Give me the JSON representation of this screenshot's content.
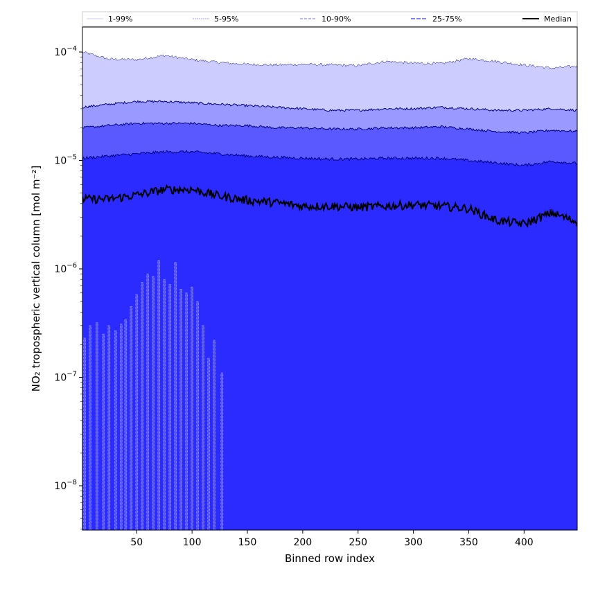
{
  "chart_data": {
    "type": "area",
    "title": "",
    "xlabel": "Binned row index",
    "ylabel": "NO₂ tropospheric vertical column [mol m⁻²]",
    "x_range": [
      1,
      448
    ],
    "y_range": [
      3.9e-09,
      0.00017
    ],
    "y_scale": "log",
    "x_ticks": [
      50,
      100,
      150,
      200,
      250,
      300,
      350,
      400
    ],
    "y_ticks": [
      {
        "value": 1e-08,
        "base": "10",
        "exp": "−8"
      },
      {
        "value": 1e-07,
        "base": "10",
        "exp": "−7"
      },
      {
        "value": 1e-06,
        "base": "10",
        "exp": "−6"
      },
      {
        "value": 1e-05,
        "base": "10",
        "exp": "−5"
      },
      {
        "value": 0.0001,
        "base": "10",
        "exp": "−4"
      }
    ],
    "grid": false,
    "legend_position": "top",
    "colors": {
      "band_1_99": "#ccccff",
      "band_5_95": "#9999ff",
      "band_10_90": "#5959ff",
      "band_25_75": "#2b2bff",
      "median": "#000000"
    },
    "legend": [
      {
        "label": "1-99%",
        "style": "band_1_99"
      },
      {
        "label": "5-95%",
        "style": "band_5_95"
      },
      {
        "label": "10-90%",
        "style": "band_10_90"
      },
      {
        "label": "25-75%",
        "style": "band_25_75"
      },
      {
        "label": "Median",
        "style": "median"
      }
    ],
    "x": [
      1,
      25,
      50,
      75,
      100,
      125,
      150,
      175,
      200,
      225,
      250,
      275,
      300,
      325,
      350,
      375,
      400,
      425,
      448
    ],
    "series": [
      {
        "name": "99th percentile",
        "values": [
          0.0001,
          8.6e-05,
          8.5e-05,
          9.3e-05,
          8.5e-05,
          8e-05,
          7.7e-05,
          7.6e-05,
          7.7e-05,
          7.6e-05,
          7.5e-05,
          8.2e-05,
          7.9e-05,
          7.8e-05,
          8.7e-05,
          8.2e-05,
          7.6e-05,
          7.1e-05,
          7.4e-05
        ]
      },
      {
        "name": "95th percentile",
        "values": [
          3.1e-05,
          3.3e-05,
          3.5e-05,
          3.5e-05,
          3.4e-05,
          3.3e-05,
          3.2e-05,
          3.1e-05,
          3e-05,
          2.9e-05,
          2.9e-05,
          3e-05,
          3e-05,
          3.1e-05,
          3e-05,
          2.9e-05,
          2.9e-05,
          3e-05,
          2.9e-05
        ]
      },
      {
        "name": "90th percentile",
        "values": [
          2e-05,
          2.1e-05,
          2.2e-05,
          2.2e-05,
          2.2e-05,
          2.1e-05,
          2.1e-05,
          2e-05,
          2e-05,
          1.95e-05,
          1.95e-05,
          2e-05,
          2e-05,
          2.05e-05,
          1.95e-05,
          1.85e-05,
          1.8e-05,
          1.9e-05,
          1.85e-05
        ]
      },
      {
        "name": "75th percentile",
        "values": [
          1.05e-05,
          1.1e-05,
          1.15e-05,
          1.2e-05,
          1.2e-05,
          1.15e-05,
          1.1e-05,
          1.07e-05,
          1.05e-05,
          1.03e-05,
          1.03e-05,
          1.05e-05,
          1.05e-05,
          1.05e-05,
          1e-05,
          9.5e-06,
          9e-06,
          9.8e-06,
          9.4e-06
        ]
      },
      {
        "name": "Median",
        "values": [
          4.4e-06,
          4.4e-06,
          4.8e-06,
          5.4e-06,
          5.4e-06,
          4.7e-06,
          4.3e-06,
          4.1e-06,
          3.8e-06,
          3.8e-06,
          3.7e-06,
          3.8e-06,
          3.9e-06,
          3.8e-06,
          3.6e-06,
          2.8e-06,
          2.6e-06,
          3.3e-06,
          2.7e-06
        ]
      }
    ],
    "lower_spikes_10th": [
      {
        "x": 3,
        "y": 2.3e-07
      },
      {
        "x": 8,
        "y": 3e-07
      },
      {
        "x": 14,
        "y": 3.2e-07
      },
      {
        "x": 20,
        "y": 2.5e-07
      },
      {
        "x": 25,
        "y": 3e-07
      },
      {
        "x": 31,
        "y": 2.7e-07
      },
      {
        "x": 36,
        "y": 3.1e-07
      },
      {
        "x": 40,
        "y": 3.4e-07
      },
      {
        "x": 45,
        "y": 4.5e-07
      },
      {
        "x": 50,
        "y": 5.8e-07
      },
      {
        "x": 55,
        "y": 7.5e-07
      },
      {
        "x": 60,
        "y": 9e-07
      },
      {
        "x": 65,
        "y": 8.5e-07
      },
      {
        "x": 70,
        "y": 1.2e-06
      },
      {
        "x": 75,
        "y": 8e-07
      },
      {
        "x": 80,
        "y": 7.2e-07
      },
      {
        "x": 85,
        "y": 1.15e-06
      },
      {
        "x": 90,
        "y": 6.5e-07
      },
      {
        "x": 95,
        "y": 6e-07
      },
      {
        "x": 100,
        "y": 6.8e-07
      },
      {
        "x": 105,
        "y": 5e-07
      },
      {
        "x": 110,
        "y": 3e-07
      },
      {
        "x": 115,
        "y": 1.5e-07
      },
      {
        "x": 120,
        "y": 2.2e-07
      },
      {
        "x": 127,
        "y": 1.1e-07
      }
    ],
    "lower_spikes_25th": [
      {
        "x": 5,
        "y": 5e-08
      },
      {
        "x": 18,
        "y": 1e-07
      },
      {
        "x": 28,
        "y": 1.4e-07
      },
      {
        "x": 38,
        "y": 2e-07
      },
      {
        "x": 48,
        "y": 3e-07
      },
      {
        "x": 58,
        "y": 4.5e-07
      },
      {
        "x": 68,
        "y": 5.5e-07
      },
      {
        "x": 78,
        "y": 4.8e-07
      },
      {
        "x": 88,
        "y": 5.2e-07
      },
      {
        "x": 98,
        "y": 3.5e-07
      },
      {
        "x": 108,
        "y": 2e-07
      },
      {
        "x": 118,
        "y": 1e-07
      }
    ]
  }
}
